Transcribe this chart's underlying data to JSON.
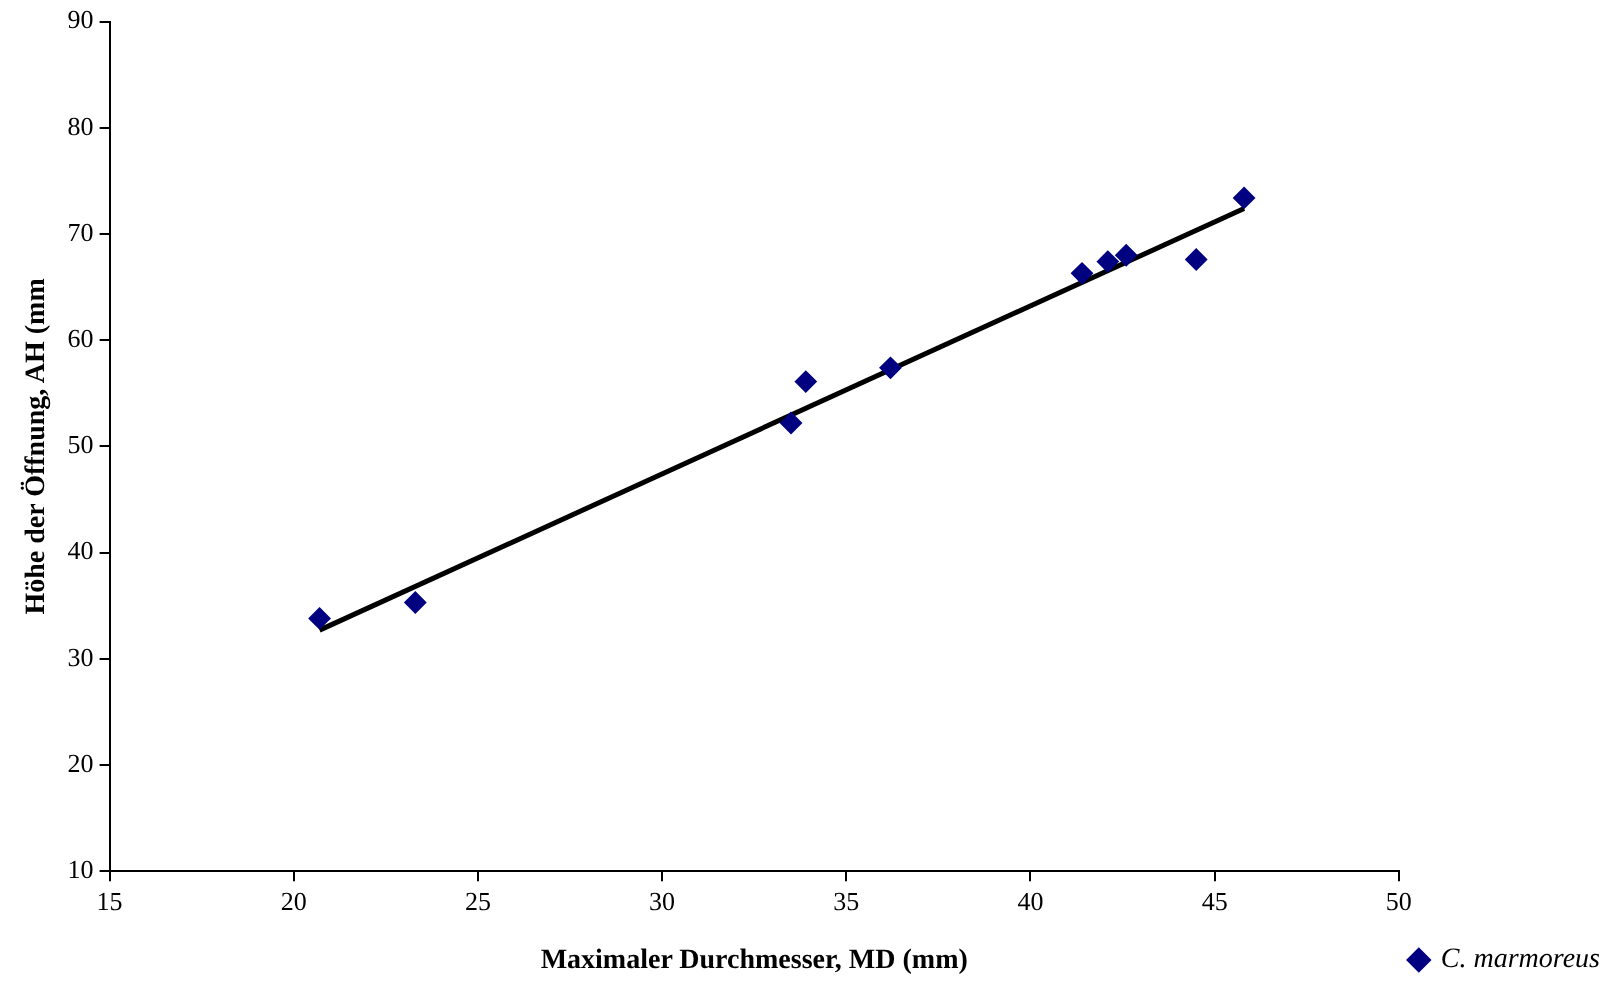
{
  "chart_data": {
    "type": "scatter",
    "xlabel": "Maximaler Durchmesser, MD (mm)",
    "ylabel": "Höhe der Öffnung, AH (mm",
    "xlim": [
      15,
      50
    ],
    "xticks": [
      15,
      20,
      25,
      30,
      35,
      40,
      45,
      50
    ],
    "ylim": [
      10,
      90
    ],
    "yticks": [
      10,
      20,
      30,
      40,
      50,
      60,
      70,
      80,
      90
    ],
    "grid": false,
    "legend": "right",
    "marker": "diamond",
    "series": [
      {
        "name": "C. marmoreus",
        "color": "#000080",
        "x": [
          20.7,
          23.3,
          33.5,
          33.9,
          36.2,
          41.4,
          42.1,
          42.6,
          44.5,
          45.8
        ],
        "values": [
          33.8,
          35.3,
          52.2,
          56.1,
          57.4,
          66.3,
          67.4,
          68.0,
          67.6,
          73.4
        ]
      },
      {
        "type": "line",
        "marker": "none",
        "color": "#000000",
        "x": [
          20.7,
          45.8
        ],
        "values": [
          32.7,
          72.4
        ]
      }
    ]
  }
}
